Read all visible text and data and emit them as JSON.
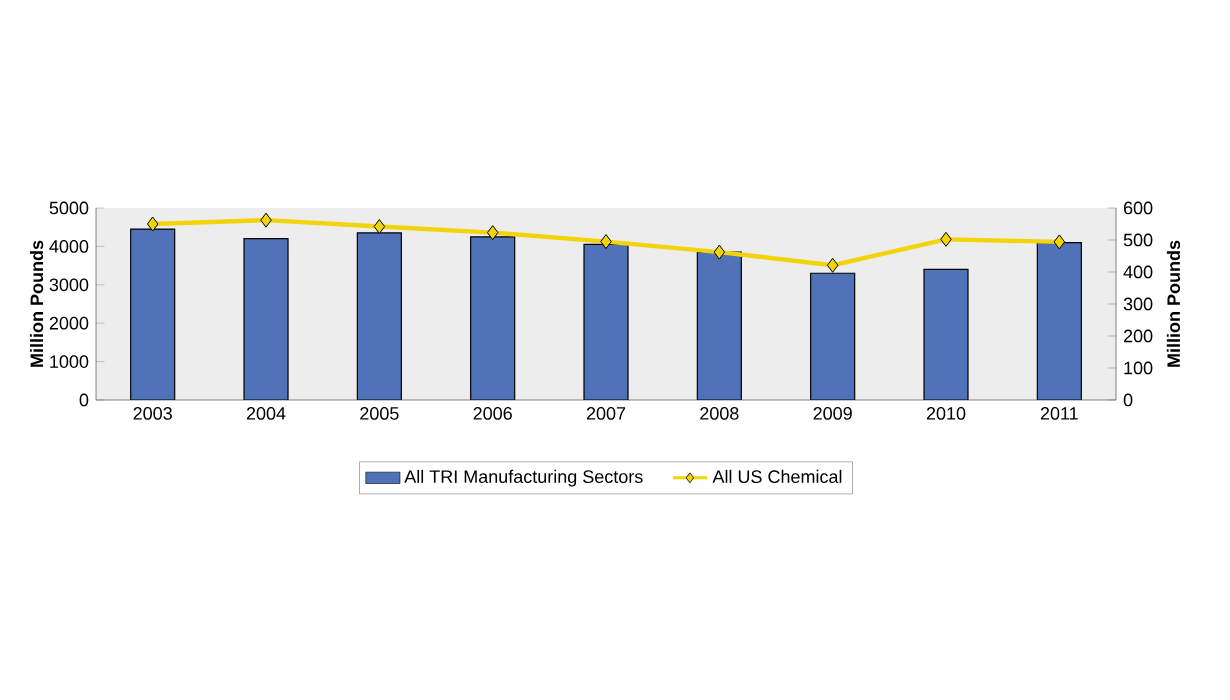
{
  "chart_data": {
    "type": "bar",
    "categories": [
      "2003",
      "2004",
      "2005",
      "2006",
      "2007",
      "2008",
      "2009",
      "2010",
      "2011"
    ],
    "series": [
      {
        "name": "All TRI Manufacturing Sectors",
        "color": "#4f72b8",
        "values": [
          4450,
          4200,
          4350,
          4250,
          4050,
          3850,
          3300,
          3400,
          4100
        ]
      },
      {
        "name": "All US Chemical",
        "type": "line",
        "axis": "y2",
        "color": "#f2d40a",
        "marker": "diamond",
        "values": [
          550,
          562,
          542,
          523,
          495,
          462,
          421,
          502,
          494
        ]
      }
    ],
    "ylabel": "Million Pounds",
    "y2label": "Million Pounds",
    "ylim": [
      0,
      5000
    ],
    "yticks": [
      0,
      1000,
      2000,
      3000,
      4000,
      5000
    ],
    "y2lim": [
      0,
      600
    ],
    "y2ticks": [
      0,
      100,
      200,
      300,
      400,
      500,
      600
    ],
    "legend": "bottom",
    "grid": false
  }
}
